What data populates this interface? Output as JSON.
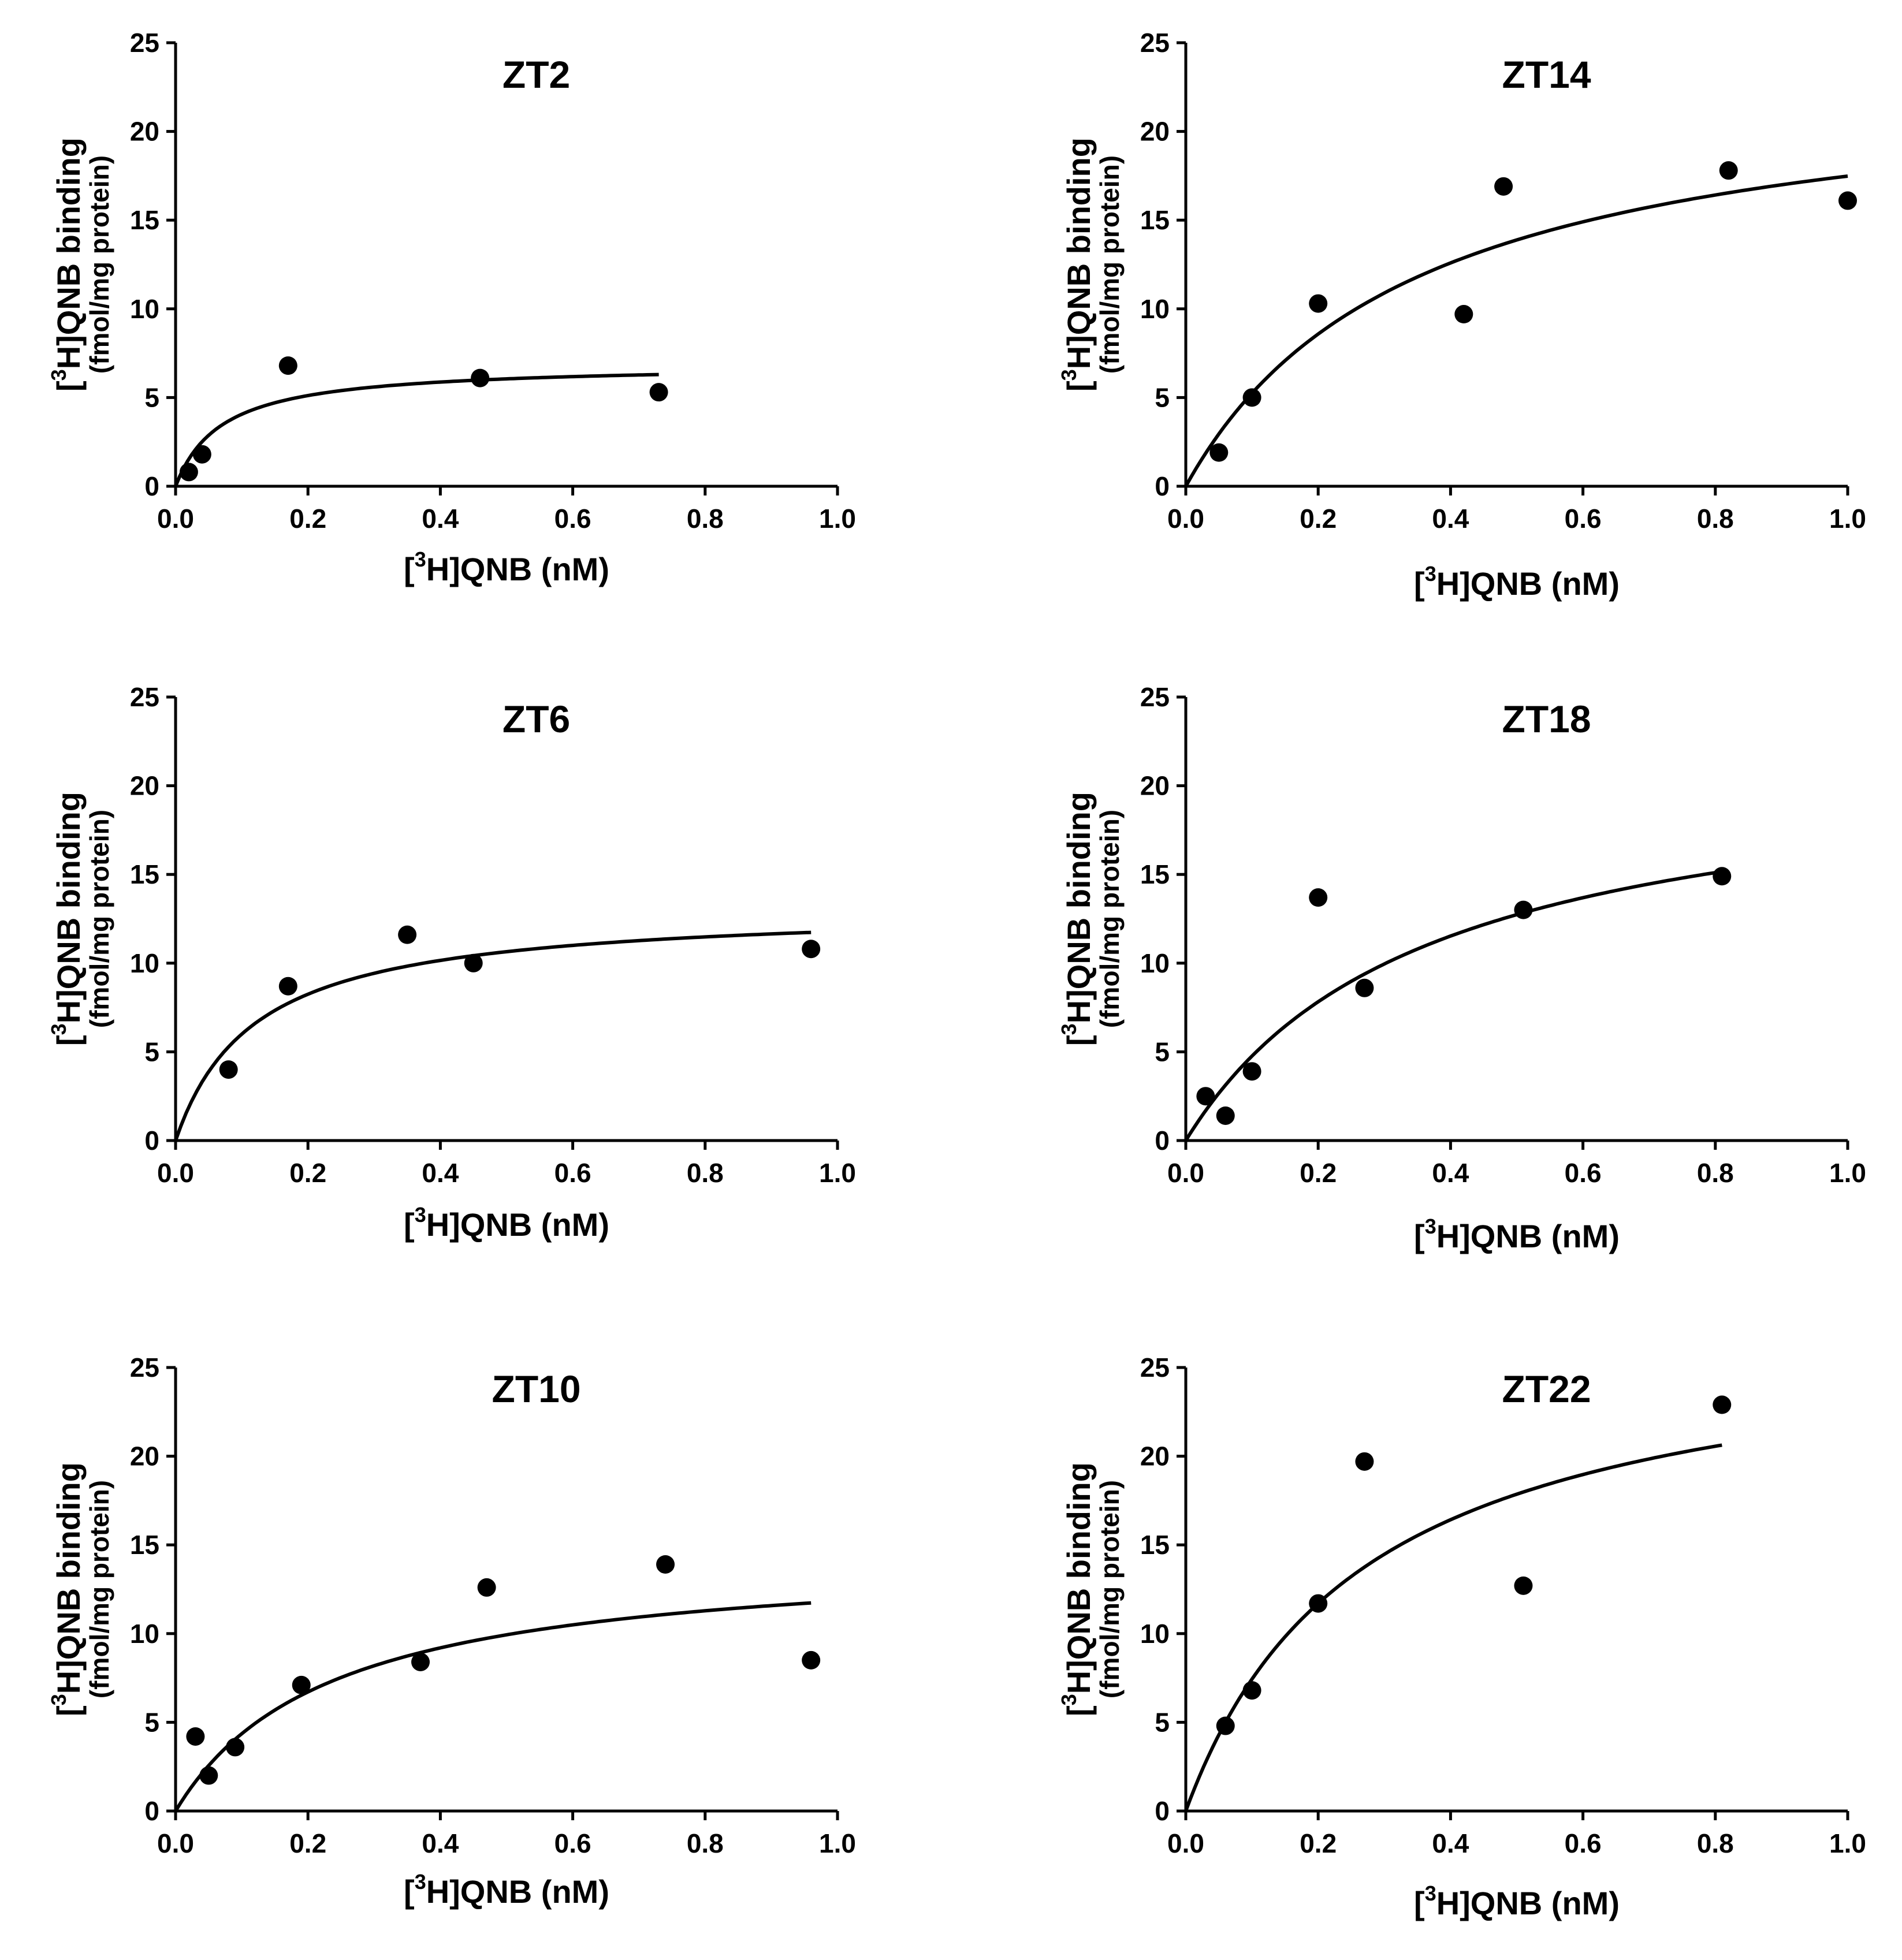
{
  "colors": {
    "ink": "#000000",
    "background": "#ffffff"
  },
  "chart_data": [
    {
      "type": "scatter",
      "title": "ZT2",
      "xlabel": {
        "prefix": "[",
        "sup": "3",
        "rest": "H]QNB (nM)"
      },
      "ylabel": {
        "prefix": "[",
        "sup": "3",
        "rest": "H]QNB binding",
        "sub": "(fmol/mg protein)"
      },
      "xlim": [
        0,
        1.0
      ],
      "ylim": [
        0,
        25
      ],
      "xticks": [
        "0.0",
        "0.2",
        "0.4",
        "0.6",
        "0.8",
        "1.0"
      ],
      "yticks": [
        "0",
        "5",
        "10",
        "15",
        "20",
        "25"
      ],
      "points": {
        "x": [
          0.02,
          0.04,
          0.17,
          0.46,
          0.73
        ],
        "y": [
          0.8,
          1.8,
          6.8,
          6.1,
          5.3
        ]
      },
      "fit": {
        "model": "one-site hyperbola",
        "Bmax": 6.9,
        "Kd": 0.07,
        "x_max": 0.73
      }
    },
    {
      "type": "scatter",
      "title": "ZT14",
      "xlabel": {
        "prefix": "[",
        "sup": "3",
        "rest": "H]QNB (nM)"
      },
      "ylabel": {
        "prefix": "[",
        "sup": "3",
        "rest": "H]QNB binding",
        "sub": "(fmol/mg protein)"
      },
      "xlim": [
        0,
        1.0
      ],
      "ylim": [
        0,
        25
      ],
      "xticks": [
        "0.0",
        "0.2",
        "0.4",
        "0.6",
        "0.8",
        "1.0"
      ],
      "yticks": [
        "0",
        "5",
        "10",
        "15",
        "20",
        "25"
      ],
      "points": {
        "x": [
          0.05,
          0.1,
          0.2,
          0.42,
          0.48,
          0.82,
          1.0
        ],
        "y": [
          1.9,
          5.0,
          10.3,
          9.7,
          16.9,
          17.8,
          16.1
        ]
      },
      "fit": {
        "model": "one-site hyperbola",
        "Bmax": 23.6,
        "Kd": 0.35,
        "x_max": 1.0
      }
    },
    {
      "type": "scatter",
      "title": "ZT6",
      "xlabel": {
        "prefix": "[",
        "sup": "3",
        "rest": "H]QNB (nM)"
      },
      "ylabel": {
        "prefix": "[",
        "sup": "3",
        "rest": "H]QNB binding",
        "sub": "(fmol/mg protein)"
      },
      "xlim": [
        0,
        1.0
      ],
      "ylim": [
        0,
        25
      ],
      "xticks": [
        "0.0",
        "0.2",
        "0.4",
        "0.6",
        "0.8",
        "1.0"
      ],
      "yticks": [
        "0",
        "5",
        "10",
        "15",
        "20",
        "25"
      ],
      "points": {
        "x": [
          0.08,
          0.17,
          0.35,
          0.45,
          0.96
        ],
        "y": [
          4.0,
          8.7,
          11.6,
          10.0,
          10.8
        ]
      },
      "fit": {
        "model": "one-site hyperbola",
        "Bmax": 13.2,
        "Kd": 0.12,
        "x_max": 0.96
      }
    },
    {
      "type": "scatter",
      "title": "ZT18",
      "xlabel": {
        "prefix": "[",
        "sup": "3",
        "rest": "H]QNB (nM)"
      },
      "ylabel": {
        "prefix": "[",
        "sup": "3",
        "rest": "H]QNB binding",
        "sub": "(fmol/mg protein)"
      },
      "xlim": [
        0,
        1.0
      ],
      "ylim": [
        0,
        25
      ],
      "xticks": [
        "0.0",
        "0.2",
        "0.4",
        "0.6",
        "0.8",
        "1.0"
      ],
      "yticks": [
        "0",
        "5",
        "10",
        "15",
        "20",
        "25"
      ],
      "points": {
        "x": [
          0.03,
          0.06,
          0.1,
          0.2,
          0.27,
          0.51,
          0.81
        ],
        "y": [
          2.5,
          1.4,
          3.9,
          13.7,
          8.6,
          13.0,
          14.9
        ]
      },
      "fit": {
        "model": "one-site hyperbola",
        "Bmax": 21.9,
        "Kd": 0.36,
        "x_max": 0.81
      }
    },
    {
      "type": "scatter",
      "title": "ZT10",
      "xlabel": {
        "prefix": "[",
        "sup": "3",
        "rest": "H]QNB (nM)"
      },
      "ylabel": {
        "prefix": "[",
        "sup": "3",
        "rest": "H]QNB binding",
        "sub": "(fmol/mg protein)"
      },
      "xlim": [
        0,
        1.0
      ],
      "ylim": [
        0,
        25
      ],
      "xticks": [
        "0.0",
        "0.2",
        "0.4",
        "0.6",
        "0.8",
        "1.0"
      ],
      "yticks": [
        "0",
        "5",
        "10",
        "15",
        "20",
        "25"
      ],
      "points": {
        "x": [
          0.03,
          0.05,
          0.09,
          0.19,
          0.37,
          0.47,
          0.74,
          0.96
        ],
        "y": [
          4.2,
          2.0,
          3.6,
          7.1,
          8.4,
          12.6,
          13.9,
          8.5
        ]
      },
      "fit": {
        "model": "one-site hyperbola",
        "Bmax": 14.6,
        "Kd": 0.235,
        "x_max": 0.96
      }
    },
    {
      "type": "scatter",
      "title": "ZT22",
      "xlabel": {
        "prefix": "[",
        "sup": "3",
        "rest": "H]QNB (nM)"
      },
      "ylabel": {
        "prefix": "[",
        "sup": "3",
        "rest": "H]QNB binding",
        "sub": "(fmol/mg protein)"
      },
      "xlim": [
        0,
        1.0
      ],
      "ylim": [
        0,
        25
      ],
      "xticks": [
        "0.0",
        "0.2",
        "0.4",
        "0.6",
        "0.8",
        "1.0"
      ],
      "yticks": [
        "0",
        "5",
        "10",
        "15",
        "20",
        "25"
      ],
      "points": {
        "x": [
          0.06,
          0.1,
          0.2,
          0.27,
          0.51,
          0.81
        ],
        "y": [
          4.8,
          6.8,
          11.7,
          19.7,
          12.7,
          22.9
        ]
      },
      "fit": {
        "model": "one-site hyperbola",
        "Bmax": 27.5,
        "Kd": 0.27,
        "x_max": 0.81
      }
    }
  ]
}
